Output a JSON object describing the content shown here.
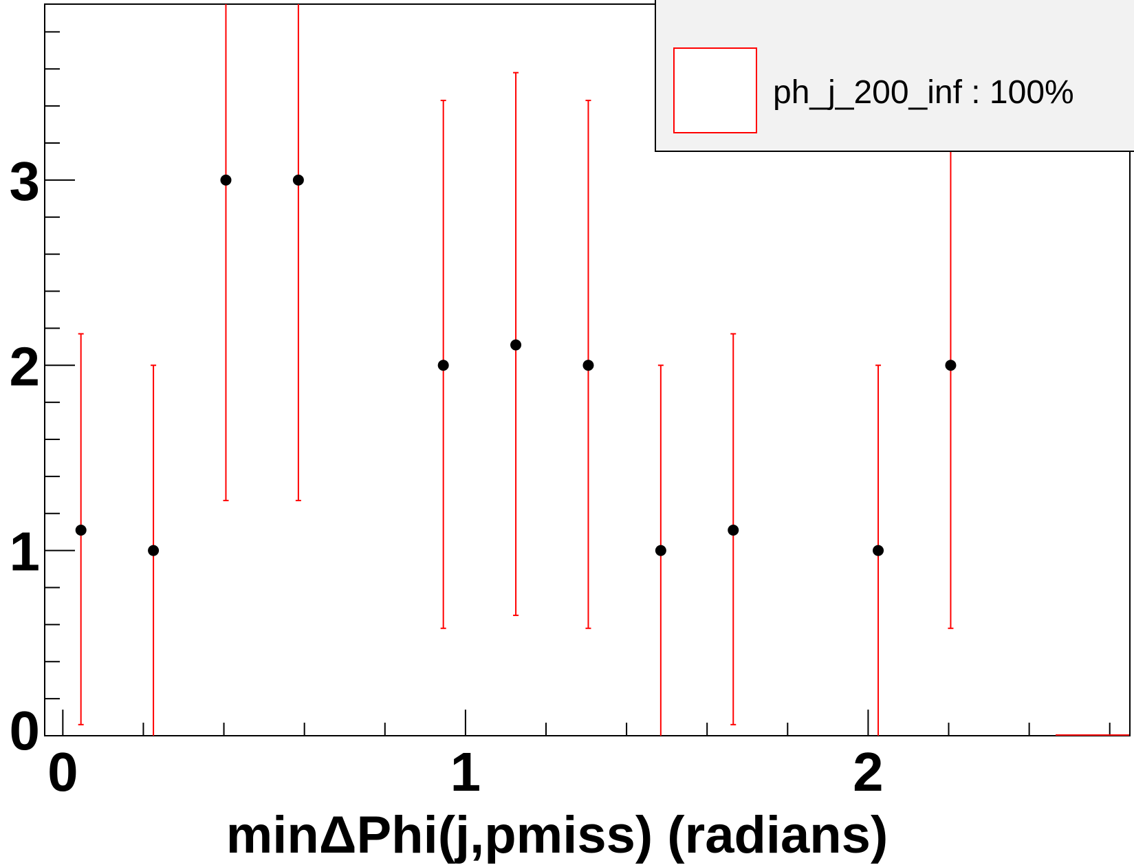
{
  "chart_data": {
    "type": "scatter",
    "title": "",
    "xlabel": "minΔPhi(j,pmiss) (radians)",
    "ylabel": "",
    "xlim": [
      -0.045,
      2.65
    ],
    "ylim": [
      0,
      3.95
    ],
    "x_major_ticks": [
      0,
      1,
      2
    ],
    "x_tick_labels": [
      "0",
      "1",
      "2"
    ],
    "y_major_ticks": [
      0,
      1,
      2,
      3
    ],
    "y_tick_labels": [
      "0",
      "1",
      "2",
      "3"
    ],
    "x_minor_step": 0.2,
    "y_minor_step": 0.2,
    "grid": false,
    "legend_position": "top-right",
    "series": [
      {
        "name": "ph_j_200_inf : 100%",
        "marker_color": "#000000",
        "error_color": "#ff0000",
        "points": [
          {
            "x": 0.045,
            "y": 1.11,
            "ylo": 0.06,
            "yhi": 2.17
          },
          {
            "x": 0.225,
            "y": 1.0,
            "ylo": 0.0,
            "yhi": 2.0
          },
          {
            "x": 0.405,
            "y": 3.0,
            "ylo": 1.27,
            "yhi": 3.95
          },
          {
            "x": 0.585,
            "y": 3.0,
            "ylo": 1.27,
            "yhi": 3.95
          },
          {
            "x": 0.945,
            "y": 2.0,
            "ylo": 0.58,
            "yhi": 3.43
          },
          {
            "x": 1.125,
            "y": 2.11,
            "ylo": 0.65,
            "yhi": 3.58
          },
          {
            "x": 1.305,
            "y": 2.0,
            "ylo": 0.58,
            "yhi": 3.43
          },
          {
            "x": 1.485,
            "y": 1.0,
            "ylo": 0.0,
            "yhi": 2.0
          },
          {
            "x": 1.665,
            "y": 1.11,
            "ylo": 0.06,
            "yhi": 2.17
          },
          {
            "x": 2.025,
            "y": 1.0,
            "ylo": 0.0,
            "yhi": 2.0
          },
          {
            "x": 2.205,
            "y": 2.0,
            "ylo": 0.58,
            "yhi": 3.43
          }
        ]
      }
    ]
  }
}
